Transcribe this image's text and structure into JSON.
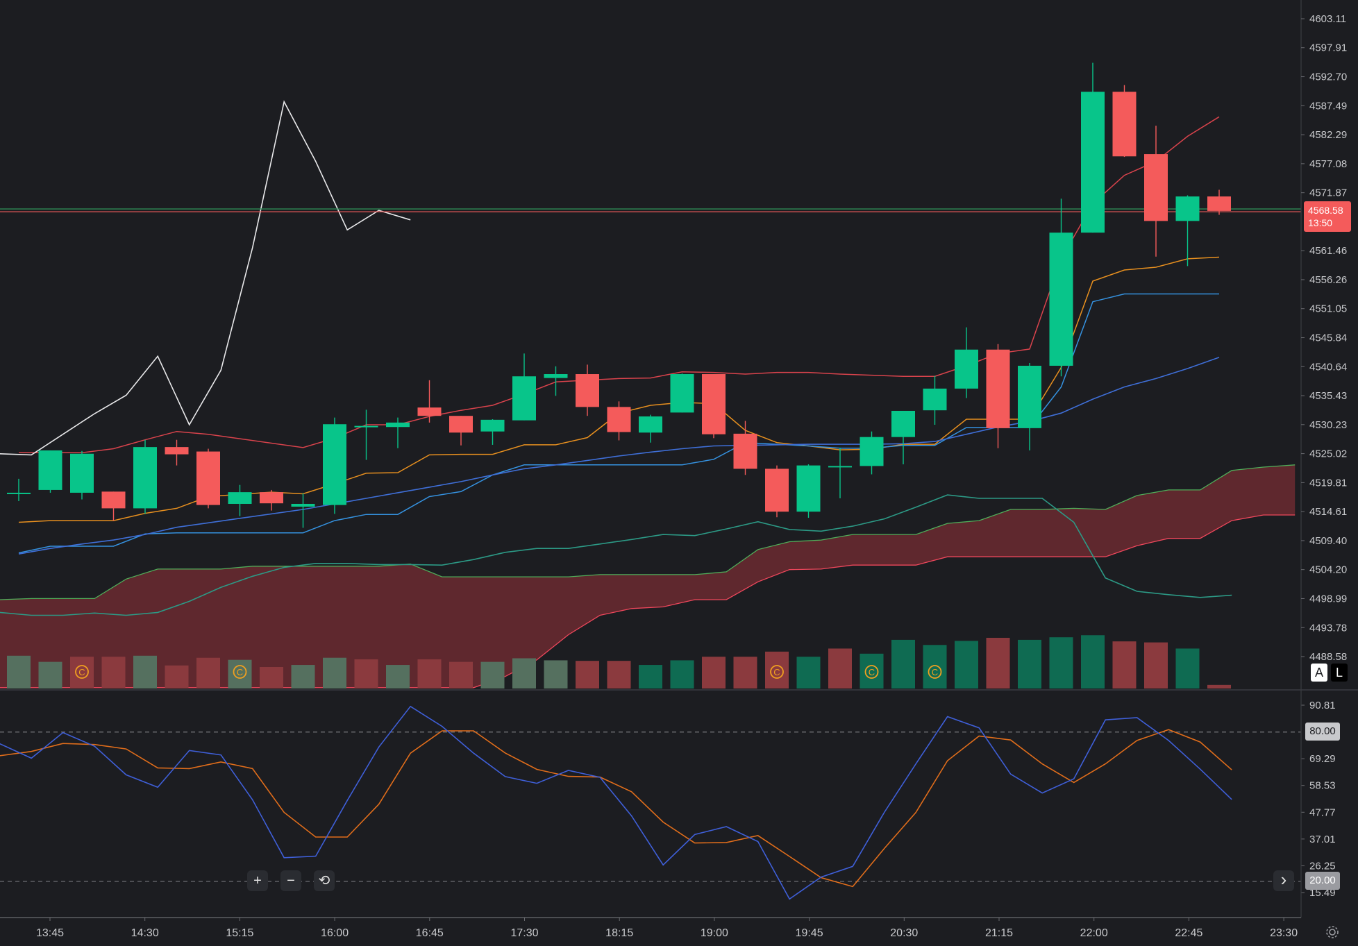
{
  "chart_data": {
    "type": "candlestick",
    "x_ticks": [
      "13:45",
      "14:30",
      "15:15",
      "16:00",
      "16:45",
      "17:30",
      "18:15",
      "19:00",
      "19:45",
      "20:30",
      "21:15",
      "22:00",
      "22:45",
      "23:30"
    ],
    "y_ticks": [
      "4603.11",
      "4597.91",
      "4592.70",
      "4587.49",
      "4582.29",
      "4577.08",
      "4571.87",
      "4561.46",
      "4556.26",
      "4551.05",
      "4545.84",
      "4540.64",
      "4535.43",
      "4530.23",
      "4525.02",
      "4519.81",
      "4514.61",
      "4509.40",
      "4504.20",
      "4498.99",
      "4493.78",
      "4488.58"
    ],
    "y_range": [
      4488.0,
      4606.0
    ],
    "candles": [
      {
        "o": 4518.0,
        "h": 4520.5,
        "l": 4516.5,
        "c": 4518.0
      },
      {
        "o": 4518.5,
        "h": 4525.6,
        "l": 4518.0,
        "c": 4525.6
      },
      {
        "o": 4518.0,
        "h": 4525.5,
        "l": 4516.8,
        "c": 4525.0
      },
      {
        "o": 4518.2,
        "h": 4518.2,
        "l": 4513.0,
        "c": 4515.2
      },
      {
        "o": 4515.2,
        "h": 4527.5,
        "l": 4514.2,
        "c": 4526.2
      },
      {
        "o": 4526.2,
        "h": 4527.5,
        "l": 4522.9,
        "c": 4524.9
      },
      {
        "o": 4525.4,
        "h": 4525.9,
        "l": 4515.2,
        "c": 4515.8
      },
      {
        "o": 4516.0,
        "h": 4519.4,
        "l": 4513.8,
        "c": 4518.1
      },
      {
        "o": 4518.1,
        "h": 4518.5,
        "l": 4514.8,
        "c": 4516.1
      },
      {
        "o": 4515.5,
        "h": 4517.9,
        "l": 4511.7,
        "c": 4516.0
      },
      {
        "o": 4515.8,
        "h": 4531.5,
        "l": 4514.2,
        "c": 4530.3
      },
      {
        "o": 4530.0,
        "h": 4532.9,
        "l": 4523.9,
        "c": 4530.0
      },
      {
        "o": 4529.8,
        "h": 4531.5,
        "l": 4526.0,
        "c": 4530.6
      },
      {
        "o": 4533.3,
        "h": 4538.2,
        "l": 4530.6,
        "c": 4531.8
      },
      {
        "o": 4531.8,
        "h": 4531.8,
        "l": 4526.5,
        "c": 4528.8
      },
      {
        "o": 4529.0,
        "h": 4531.2,
        "l": 4526.6,
        "c": 4531.1
      },
      {
        "o": 4531.0,
        "h": 4543.0,
        "l": 4531.0,
        "c": 4538.9
      },
      {
        "o": 4538.6,
        "h": 4540.7,
        "l": 4535.4,
        "c": 4539.3
      },
      {
        "o": 4539.3,
        "h": 4541.0,
        "l": 4531.8,
        "c": 4533.4
      },
      {
        "o": 4533.4,
        "h": 4534.4,
        "l": 4527.4,
        "c": 4528.9
      },
      {
        "o": 4528.8,
        "h": 4532.0,
        "l": 4527.0,
        "c": 4531.7
      },
      {
        "o": 4532.4,
        "h": 4539.4,
        "l": 4532.4,
        "c": 4539.3
      },
      {
        "o": 4539.3,
        "h": 4539.3,
        "l": 4527.8,
        "c": 4528.5
      },
      {
        "o": 4528.6,
        "h": 4530.9,
        "l": 4521.2,
        "c": 4522.3
      },
      {
        "o": 4522.3,
        "h": 4522.9,
        "l": 4513.6,
        "c": 4514.6
      },
      {
        "o": 4514.6,
        "h": 4523.1,
        "l": 4513.5,
        "c": 4522.9
      },
      {
        "o": 4522.6,
        "h": 4526.1,
        "l": 4517.0,
        "c": 4522.8
      },
      {
        "o": 4522.8,
        "h": 4529.0,
        "l": 4521.3,
        "c": 4528.0
      },
      {
        "o": 4528.0,
        "h": 4532.7,
        "l": 4523.1,
        "c": 4532.7
      },
      {
        "o": 4532.8,
        "h": 4539.0,
        "l": 4530.2,
        "c": 4536.7
      },
      {
        "o": 4536.7,
        "h": 4547.7,
        "l": 4535.0,
        "c": 4543.7
      },
      {
        "o": 4543.7,
        "h": 4544.7,
        "l": 4526.0,
        "c": 4529.6
      },
      {
        "o": 4529.6,
        "h": 4541.3,
        "l": 4525.6,
        "c": 4540.8
      },
      {
        "o": 4540.8,
        "h": 4570.8,
        "l": 4538.9,
        "c": 4564.7
      },
      {
        "o": 4564.7,
        "h": 4595.2,
        "l": 4564.7,
        "c": 4590.0
      },
      {
        "o": 4590.0,
        "h": 4591.2,
        "l": 4578.3,
        "c": 4578.4
      },
      {
        "o": 4578.8,
        "h": 4583.9,
        "l": 4560.4,
        "c": 4566.8
      },
      {
        "o": 4566.8,
        "h": 4571.4,
        "l": 4558.7,
        "c": 4571.2
      },
      {
        "o": 4571.2,
        "h": 4572.4,
        "l": 4567.9,
        "c": 4568.6
      }
    ],
    "lines": {
      "red": [
        4525.2,
        4525.2,
        4525.2,
        4525.9,
        4527.5,
        4529.0,
        4528.5,
        4527.7,
        4526.9,
        4526.1,
        4527.8,
        4530.2,
        4530.2,
        4531.7,
        4532.8,
        4533.7,
        4535.7,
        4537.9,
        4538.2,
        4538.5,
        4538.6,
        4539.7,
        4539.6,
        4539.3,
        4539.6,
        4539.6,
        4539.3,
        4539.1,
        4538.9,
        4538.9,
        4540.8,
        4543.0,
        4543.8,
        4560.0,
        4569.9,
        4575.0,
        4577.5,
        4582.0,
        4585.5
      ],
      "orange": [
        4512.7,
        4513.0,
        4513.0,
        4513.0,
        4514.3,
        4515.2,
        4517.3,
        4517.7,
        4518.1,
        4517.8,
        4519.6,
        4521.5,
        4521.6,
        4524.8,
        4524.9,
        4524.9,
        4526.6,
        4526.6,
        4527.9,
        4532.3,
        4533.7,
        4534.2,
        4534.0,
        4529.2,
        4527.0,
        4526.4,
        4525.7,
        4525.8,
        4526.7,
        4526.7,
        4531.2,
        4531.2,
        4531.2,
        4540.5,
        4556.0,
        4558.0,
        4558.5,
        4560.0,
        4560.3
      ],
      "blue_light": [
        4507.2,
        4508.4,
        4508.4,
        4508.4,
        4510.6,
        4510.8,
        4510.8,
        4510.8,
        4510.8,
        4510.8,
        4513.0,
        4514.1,
        4514.1,
        4517.3,
        4518.2,
        4521.2,
        4523.0,
        4523.0,
        4523.0,
        4523.0,
        4523.0,
        4523.0,
        4524.0,
        4527.0,
        4526.7,
        4526.4,
        4526.0,
        4526.0,
        4526.5,
        4526.5,
        4529.7,
        4529.7,
        4529.7,
        4537.0,
        4552.3,
        4553.7,
        4553.7,
        4553.7,
        4553.7
      ],
      "blue_dark": [
        4507.0,
        4508.0,
        4508.8,
        4509.5,
        4510.5,
        4511.8,
        4512.6,
        4513.4,
        4514.2,
        4515.0,
        4516.0,
        4517.0,
        4518.0,
        4519.0,
        4520.0,
        4521.2,
        4522.3,
        4523.0,
        4523.8,
        4524.6,
        4525.3,
        4525.9,
        4526.4,
        4526.5,
        4526.6,
        4526.7,
        4526.7,
        4526.7,
        4526.8,
        4527.2,
        4528.5,
        4529.8,
        4530.8,
        4532.3,
        4534.8,
        4537.0,
        4538.5,
        4540.3,
        4542.3
      ],
      "teal": [
        4496.5,
        4496.0,
        4496.0,
        4496.4,
        4496.0,
        4496.5,
        4498.5,
        4501.0,
        4503.0,
        4504.6,
        4505.3,
        4505.3,
        4505.1,
        4505.1,
        4505.0,
        4506.0,
        4507.3,
        4508.0,
        4508.0,
        4508.8,
        4509.6,
        4510.5,
        4510.3,
        4511.5,
        4512.8,
        4511.4,
        4511.1,
        4512.0,
        4513.3,
        4515.4,
        4517.6,
        4517.0,
        4517.0,
        4517.0,
        4512.7,
        4502.7,
        4500.3,
        4499.7,
        4499.2,
        4499.6
      ],
      "cloud_upper": [
        4498.8,
        4499.0,
        4499.0,
        4499.0,
        4502.5,
        4504.3,
        4504.3,
        4504.3,
        4504.8,
        4504.8,
        4504.8,
        4504.8,
        4504.8,
        4505.2,
        4502.9,
        4502.9,
        4502.9,
        4502.9,
        4502.9,
        4503.3,
        4503.3,
        4503.3,
        4503.3,
        4503.8,
        4507.8,
        4509.2,
        4509.5,
        4510.5,
        4510.5,
        4510.5,
        4512.5,
        4513.0,
        4515.0,
        4515.0,
        4515.2,
        4515.0,
        4517.5,
        4518.5,
        4518.5,
        4522.0,
        4522.6,
        4523.0
      ],
      "cloud_lower": [
        4483.0,
        4483.0,
        4483.0,
        4483.0,
        4483.0,
        4483.0,
        4483.0,
        4483.0,
        4483.0,
        4483.0,
        4483.0,
        4483.0,
        4483.0,
        4483.0,
        4483.0,
        4483.0,
        4485.0,
        4488.0,
        4492.5,
        4496.0,
        4497.2,
        4497.5,
        4498.8,
        4498.8,
        4502.0,
        4504.2,
        4504.3,
        4505.0,
        4505.0,
        4505.0,
        4506.5,
        4506.5,
        4506.5,
        4506.5,
        4506.5,
        4506.5,
        4508.5,
        4509.8,
        4509.8,
        4513.0,
        4514.0,
        4514.0
      ],
      "white": [
        4525.0,
        4524.8,
        4528.5,
        4532.2,
        4535.5,
        4542.5,
        4530.2,
        4540.0,
        4562.0,
        4588.2,
        4577.5,
        4565.2,
        4568.7,
        4567.0
      ]
    },
    "volume": [
      {
        "v": 0.64,
        "dir": "flat"
      },
      {
        "v": 0.52,
        "dir": "flat"
      },
      {
        "v": 0.62,
        "dir": "dn"
      },
      {
        "v": 0.62,
        "dir": "dn"
      },
      {
        "v": 0.64,
        "dir": "flat"
      },
      {
        "v": 0.45,
        "dir": "dn"
      },
      {
        "v": 0.6,
        "dir": "dn"
      },
      {
        "v": 0.56,
        "dir": "flat"
      },
      {
        "v": 0.42,
        "dir": "dn"
      },
      {
        "v": 0.46,
        "dir": "flat"
      },
      {
        "v": 0.6,
        "dir": "flat"
      },
      {
        "v": 0.57,
        "dir": "dn"
      },
      {
        "v": 0.46,
        "dir": "flat"
      },
      {
        "v": 0.57,
        "dir": "dn"
      },
      {
        "v": 0.52,
        "dir": "dn"
      },
      {
        "v": 0.52,
        "dir": "flat"
      },
      {
        "v": 0.59,
        "dir": "flat"
      },
      {
        "v": 0.55,
        "dir": "flat"
      },
      {
        "v": 0.54,
        "dir": "dn"
      },
      {
        "v": 0.54,
        "dir": "dn"
      },
      {
        "v": 0.46,
        "dir": "up"
      },
      {
        "v": 0.55,
        "dir": "up"
      },
      {
        "v": 0.62,
        "dir": "dn"
      },
      {
        "v": 0.62,
        "dir": "dn"
      },
      {
        "v": 0.72,
        "dir": "dn"
      },
      {
        "v": 0.62,
        "dir": "up"
      },
      {
        "v": 0.78,
        "dir": "dn"
      },
      {
        "v": 0.68,
        "dir": "up"
      },
      {
        "v": 0.95,
        "dir": "up"
      },
      {
        "v": 0.85,
        "dir": "up"
      },
      {
        "v": 0.93,
        "dir": "up"
      },
      {
        "v": 0.99,
        "dir": "dn"
      },
      {
        "v": 0.95,
        "dir": "up"
      },
      {
        "v": 1.0,
        "dir": "up"
      },
      {
        "v": 1.04,
        "dir": "up"
      },
      {
        "v": 0.92,
        "dir": "dn"
      },
      {
        "v": 0.9,
        "dir": "dn"
      },
      {
        "v": 0.78,
        "dir": "up"
      },
      {
        "v": 0.07,
        "dir": "dn"
      }
    ],
    "volume_markers": [
      2,
      7,
      24,
      27,
      29
    ],
    "volume_marker_label": "C",
    "oscillator": {
      "y_ticks": [
        "90.81",
        "69.29",
        "58.53",
        "47.77",
        "37.01",
        "26.25",
        "15.49"
      ],
      "y_range": [
        11.0,
        96.0
      ],
      "upper_level": "80.00",
      "lower_level": "20.00",
      "blue": [
        75.3,
        69.5,
        79.8,
        74.3,
        62.8,
        57.8,
        72.6,
        70.8,
        52.8,
        29.5,
        30.1,
        52.5,
        74.0,
        90.3,
        82.3,
        71.5,
        62.1,
        59.4,
        64.6,
        61.8,
        46.3,
        26.6,
        38.8,
        42.0,
        36.0,
        12.9,
        21.7,
        26.0,
        47.7,
        67.2,
        86.2,
        81.7,
        63.1,
        55.5,
        61.2,
        84.9,
        85.8,
        76.6,
        65.1,
        52.9
      ],
      "orange": [
        70.5,
        72.2,
        75.4,
        75.0,
        73.2,
        65.6,
        65.3,
        68.0,
        65.3,
        47.7,
        37.8,
        37.8,
        51.0,
        71.5,
        80.5,
        80.5,
        71.6,
        65.0,
        62.2,
        61.9,
        56.0,
        43.8,
        35.4,
        35.6,
        38.4,
        30.0,
        21.5,
        17.9,
        33.2,
        47.7,
        68.5,
        78.4,
        76.8,
        67.2,
        59.7,
        67.2,
        76.6,
        81.0,
        76.0,
        64.8
      ]
    },
    "last_price": "4568.58",
    "countdown": "13:50"
  },
  "controls": {
    "zoom_in": "+",
    "zoom_out": "−",
    "reset": "⟲",
    "scroll_right": "›",
    "mode_auto": "A",
    "mode_log": "L",
    "settings_icon": "gear-icon"
  },
  "colors": {
    "bg": "#1c1d21",
    "up": "#08c58a",
    "down": "#f45b5b",
    "vol_up": "#0f6b52",
    "vol_down": "#8b3a3e",
    "vol_flat": "#55705f",
    "cloud": "#6b2a30",
    "grid_line": "#3a3c42"
  }
}
